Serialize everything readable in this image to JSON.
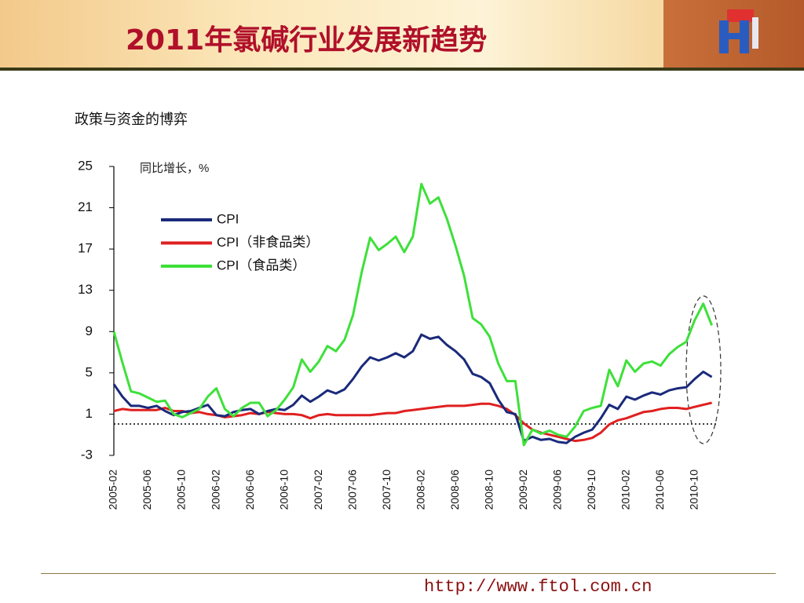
{
  "header": {
    "title": "2011年氯碱行业发展新趋势"
  },
  "subtitle": "政策与资金的博弈",
  "footer": {
    "url": "http://www.ftol.com.cn"
  },
  "chart_data": {
    "type": "line",
    "y_label": "同比增长，%",
    "categories": [
      "2005-02",
      null,
      null,
      null,
      "2005-06",
      null,
      null,
      null,
      "2005-10",
      null,
      null,
      null,
      "2006-02",
      null,
      null,
      null,
      "2006-06",
      null,
      null,
      null,
      "2006-10",
      null,
      null,
      null,
      "2007-02",
      null,
      null,
      null,
      "2007-06",
      null,
      null,
      null,
      "2007-10",
      null,
      null,
      null,
      "2008-02",
      null,
      null,
      null,
      "2008-06",
      null,
      null,
      null,
      "2008-10",
      null,
      null,
      null,
      "2009-02",
      null,
      null,
      null,
      "2009-06",
      null,
      null,
      null,
      "2009-10",
      null,
      null,
      null,
      "2010-02",
      null,
      null,
      null,
      "2010-06",
      null,
      null,
      null,
      "2010-10",
      null,
      null
    ],
    "series": [
      {
        "name": "CPI",
        "color": "#1a2a7a",
        "values": [
          3.9,
          2.7,
          1.8,
          1.8,
          1.6,
          1.8,
          1.3,
          0.9,
          1.2,
          1.3,
          1.6,
          1.9,
          0.9,
          0.8,
          1.2,
          1.4,
          1.5,
          1.0,
          1.3,
          1.5,
          1.4,
          1.9,
          2.8,
          2.2,
          2.7,
          3.3,
          3.0,
          3.4,
          4.4,
          5.6,
          6.5,
          6.2,
          6.5,
          6.9,
          6.5,
          7.1,
          8.7,
          8.3,
          8.5,
          7.7,
          7.1,
          6.3,
          4.9,
          4.6,
          4.0,
          2.4,
          1.2,
          1.0,
          -1.6,
          -1.2,
          -1.5,
          -1.4,
          -1.7,
          -1.8,
          -1.2,
          -0.8,
          -0.5,
          0.6,
          1.9,
          1.5,
          2.7,
          2.4,
          2.8,
          3.1,
          2.9,
          3.3,
          3.5,
          3.6,
          4.4,
          5.1,
          4.6
        ]
      },
      {
        "name": "CPI（非食品类）",
        "color": "#e02020",
        "values": [
          1.3,
          1.5,
          1.4,
          1.4,
          1.4,
          1.4,
          1.6,
          1.3,
          1.3,
          1.1,
          1.2,
          1.0,
          0.9,
          0.7,
          0.8,
          0.9,
          1.1,
          1.0,
          1.2,
          1.1,
          1.0,
          1.0,
          0.9,
          0.6,
          0.9,
          1.0,
          0.9,
          0.9,
          0.9,
          0.9,
          0.9,
          1.0,
          1.1,
          1.1,
          1.3,
          1.4,
          1.5,
          1.6,
          1.7,
          1.8,
          1.8,
          1.8,
          1.9,
          2.0,
          2.0,
          1.8,
          1.5,
          0.9,
          0.1,
          -0.5,
          -0.8,
          -1.0,
          -1.2,
          -1.4,
          -1.6,
          -1.5,
          -1.3,
          -0.8,
          0.0,
          0.4,
          0.6,
          0.9,
          1.2,
          1.3,
          1.5,
          1.6,
          1.6,
          1.5,
          1.7,
          1.9,
          2.1
        ]
      },
      {
        "name": "CPI（食品类）",
        "color": "#3ee03a",
        "values": [
          9.0,
          6.0,
          3.2,
          3.0,
          2.6,
          2.2,
          2.3,
          1.0,
          0.7,
          1.1,
          1.5,
          2.7,
          3.5,
          1.5,
          0.8,
          1.6,
          2.1,
          2.1,
          0.8,
          1.4,
          2.4,
          3.6,
          6.3,
          5.1,
          6.1,
          7.6,
          7.1,
          8.2,
          10.6,
          14.7,
          18.1,
          16.9,
          17.5,
          18.2,
          16.7,
          18.2,
          23.3,
          21.4,
          22.0,
          19.9,
          17.3,
          14.4,
          10.3,
          9.7,
          8.5,
          5.9,
          4.2,
          4.2,
          -2.0,
          -0.5,
          -0.9,
          -0.6,
          -1.0,
          -1.2,
          -0.2,
          1.3,
          1.6,
          1.8,
          5.3,
          3.7,
          6.2,
          5.1,
          5.9,
          6.1,
          5.7,
          6.8,
          7.5,
          8.0,
          10.1,
          11.7,
          9.6
        ]
      }
    ],
    "ylim": [
      -3,
      25
    ],
    "yticks": [
      -3,
      1,
      5,
      9,
      13,
      17,
      21,
      25
    ]
  }
}
